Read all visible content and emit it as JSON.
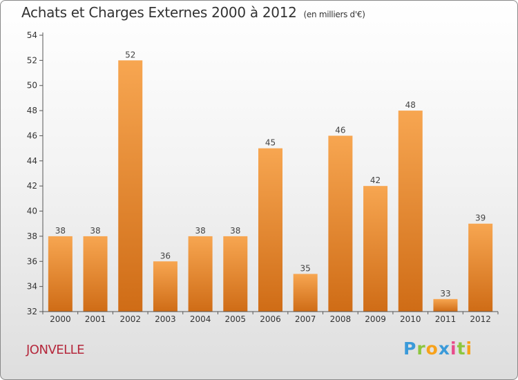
{
  "header": {
    "title": "Achats et Charges Externes 2000 à 2012",
    "unit": "(en milliers d'€)"
  },
  "footer": {
    "commune": "JONVELLE",
    "logo_letters": [
      "P",
      "r",
      "o",
      "x",
      "i",
      "t",
      "i"
    ],
    "logo_colors": [
      "#3a9ad9",
      "#8cc63f",
      "#f7a21b",
      "#3a9ad9",
      "#e84c8b",
      "#8cc63f",
      "#f7a21b"
    ]
  },
  "colors": {
    "bar_light": "#f7a651",
    "bar_dark": "#cf6c16",
    "axis": "#555555",
    "grid": "#dddddd"
  },
  "chart_data": {
    "type": "bar",
    "title": "Achats et Charges Externes 2000 à 2012",
    "subtitle": "(en milliers d'€)",
    "categories": [
      "2000",
      "2001",
      "2002",
      "2003",
      "2004",
      "2005",
      "2006",
      "2007",
      "2008",
      "2009",
      "2010",
      "2011",
      "2012"
    ],
    "values": [
      38,
      38,
      52,
      36,
      38,
      38,
      45,
      35,
      46,
      42,
      48,
      33,
      39
    ],
    "ylim": [
      32,
      54
    ],
    "yticks": [
      32,
      34,
      36,
      38,
      40,
      42,
      44,
      46,
      48,
      50,
      52,
      54
    ],
    "xlabel": "",
    "ylabel": "",
    "grid": false,
    "data_labels": true
  }
}
